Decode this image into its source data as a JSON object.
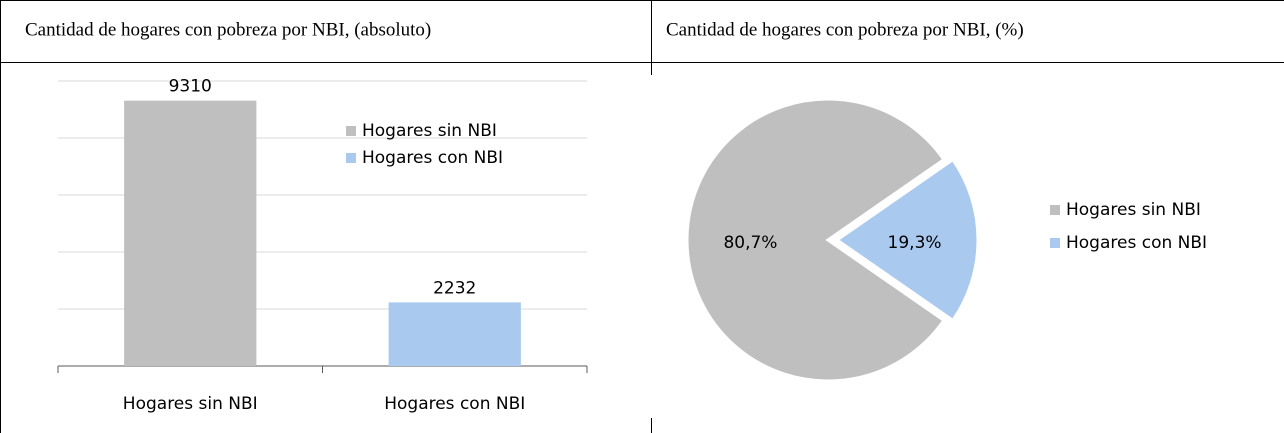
{
  "chart_data": [
    {
      "type": "bar",
      "title": "Cantidad de hogares con pobreza por NBI, (absoluto)",
      "categories": [
        "Hogares sin NBI",
        "Hogares con NBI"
      ],
      "series": [
        {
          "name": "Hogares sin NBI",
          "color": "#bfbfbf"
        },
        {
          "name": "Hogares con NBI",
          "color": "#a9c9ef"
        }
      ],
      "values": [
        9310,
        2232
      ],
      "ylim": [
        0,
        10000
      ],
      "yticks": [
        0,
        2000,
        4000,
        6000,
        8000,
        10000
      ],
      "grid": true
    },
    {
      "type": "pie",
      "title": "Cantidad de hogares con pobreza por NBI, (%)",
      "categories": [
        "Hogares sin NBI",
        "Hogares con NBI"
      ],
      "colors": [
        "#bfbfbf",
        "#a9c9ef"
      ],
      "values": [
        80.7,
        19.3
      ],
      "value_labels": [
        "80,7%",
        "19,3%"
      ]
    }
  ]
}
